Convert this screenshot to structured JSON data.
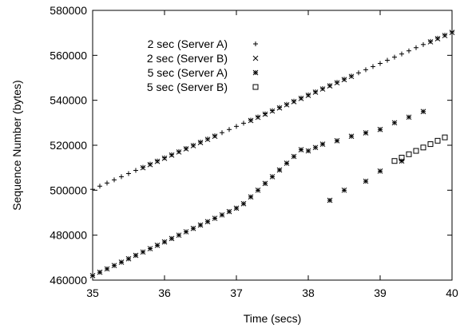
{
  "chart_data": {
    "type": "scatter",
    "title": "",
    "xlabel": "Time (secs)",
    "ylabel": "Sequence Number (bytes)",
    "xlim": [
      35,
      40
    ],
    "ylim": [
      460000,
      580000
    ],
    "xticks": [
      35,
      36,
      37,
      38,
      39,
      40
    ],
    "yticks": [
      460000,
      480000,
      500000,
      520000,
      540000,
      560000,
      580000
    ],
    "grid": false,
    "legend_position": "top-left",
    "series": [
      {
        "name": "2 sec (Server A)",
        "marker": "plus",
        "x": [
          35.0,
          35.1,
          35.2,
          35.3,
          35.4,
          35.5,
          35.6,
          35.7,
          35.8,
          35.9,
          36.0,
          36.1,
          36.2,
          36.3,
          36.4,
          36.5,
          36.6,
          36.7,
          36.8,
          36.9,
          37.0,
          37.1,
          37.2,
          37.3,
          37.4,
          37.5,
          37.6,
          37.7,
          37.8,
          37.9,
          38.0,
          38.1,
          38.2,
          38.3,
          38.4,
          38.5,
          38.6,
          38.7,
          38.8,
          38.9,
          39.0,
          39.1,
          39.2,
          39.3,
          39.4,
          39.5,
          39.6,
          39.7,
          39.8,
          39.9,
          40.0
        ],
        "y": [
          500400,
          501800,
          503200,
          504600,
          506000,
          507400,
          508800,
          510200,
          511600,
          513000,
          514400,
          515800,
          517200,
          518600,
          520000,
          521400,
          522800,
          524200,
          525600,
          527000,
          528400,
          529800,
          531200,
          532600,
          534000,
          535400,
          536800,
          538200,
          539600,
          541000,
          542400,
          543800,
          545200,
          546600,
          548000,
          549400,
          550800,
          552200,
          553600,
          555000,
          556400,
          557800,
          559200,
          560600,
          562000,
          563400,
          564800,
          566200,
          567600,
          569000,
          570400
        ]
      },
      {
        "name": "2 sec (Server B)",
        "marker": "cross",
        "x": [
          35.7,
          35.8,
          35.9,
          36.0,
          36.1,
          36.2,
          36.3,
          36.4,
          36.5,
          36.6,
          36.7,
          37.2,
          37.3,
          37.4,
          37.5,
          37.6,
          37.7,
          37.8,
          37.9,
          38.0,
          38.1,
          38.2,
          38.3,
          38.4,
          38.5,
          38.6,
          39.7,
          39.8,
          39.9,
          40.0
        ],
        "y": [
          510000,
          511400,
          512800,
          514200,
          515600,
          517000,
          518400,
          519800,
          521200,
          522600,
          524000,
          531000,
          532400,
          533800,
          535200,
          536600,
          538000,
          539400,
          540800,
          542200,
          543600,
          545000,
          546400,
          547800,
          549200,
          550600,
          566000,
          567400,
          568800,
          570200
        ]
      },
      {
        "name": "5 sec (Server A)",
        "marker": "star",
        "x": [
          35.0,
          35.1,
          35.2,
          35.3,
          35.4,
          35.5,
          35.6,
          35.7,
          35.8,
          35.9,
          36.0,
          36.1,
          36.2,
          36.3,
          36.4,
          36.5,
          36.6,
          36.7,
          36.8,
          36.9,
          37.0,
          37.1,
          37.2,
          37.3,
          37.4,
          37.5,
          37.6,
          37.7,
          37.8,
          37.9,
          38.0,
          38.1,
          38.2,
          38.4,
          38.6,
          38.8,
          39.0,
          39.2,
          39.4,
          39.6,
          38.3,
          38.5,
          38.8,
          39.0,
          39.3
        ],
        "y": [
          462000,
          463500,
          465000,
          466500,
          468000,
          469500,
          471000,
          472500,
          474000,
          475500,
          477000,
          478500,
          480000,
          481500,
          483000,
          484500,
          486000,
          487500,
          489000,
          490500,
          492000,
          494000,
          497000,
          500000,
          503000,
          506000,
          509000,
          512000,
          515000,
          518000,
          517500,
          519000,
          520500,
          522000,
          524000,
          525500,
          527000,
          530000,
          532500,
          535000,
          495500,
          500000,
          504000,
          508500,
          513000
        ]
      },
      {
        "name": "5 sec (Server B)",
        "marker": "square",
        "x": [
          39.2,
          39.3,
          39.4,
          39.5,
          39.6,
          39.7,
          39.8,
          39.9
        ],
        "y": [
          513000,
          514500,
          516000,
          517500,
          519000,
          520500,
          522000,
          523500
        ]
      }
    ]
  }
}
